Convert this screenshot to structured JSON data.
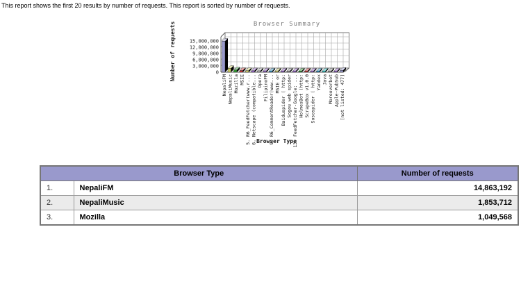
{
  "page": {
    "intro_text": "This report shows the first 20 results by number of requests. This report is sorted by number of requests."
  },
  "chart_data": {
    "type": "bar",
    "style": "3d-bars",
    "title": "Browser Summary",
    "xlabel": "Browser Type",
    "ylabel": "Number of requests",
    "ylim": [
      0,
      15000000
    ],
    "ytick_step": 3000000,
    "ytick_labels": [
      "0",
      "3,000,000",
      "6,000,000",
      "9,000,000",
      "12,000,000",
      "15,000,000"
    ],
    "grid": true,
    "categories": [
      "NepaliFM",
      "NepaliMusic",
      "Mozilla",
      "MSIE",
      "5. R6_FeedFetcher(www.r...",
      "6. Netscape (compatible...",
      "Opera",
      "FilipinoFM",
      "9. R6_CommentReader(www...",
      "MSIE or",
      "Baiduspider ( http:",
      "Sogou web spider",
      "13. FeedFetcher-Google: ...",
      "HolmesBot (http:",
      "ScrapeBox v1.0.0",
      "Sosospider ( http:",
      "Yandex",
      "Java",
      "Moreoverbot",
      "Apple-PubSub",
      "[not listed: 477]"
    ],
    "values": [
      14863192,
      1853712,
      1049568,
      800000,
      750000,
      700000,
      650000,
      620000,
      600000,
      580000,
      560000,
      540000,
      520000,
      500000,
      480000,
      460000,
      440000,
      420000,
      400000,
      380000,
      900000
    ],
    "bar_colors": [
      "#9999cc",
      "#cccc66",
      "#339933",
      "#cc3333",
      "#cccc66",
      "#9966cc",
      "#bbbbbb",
      "#9966cc",
      "#3399cc",
      "#cccc66",
      "#9966cc",
      "#999999",
      "#9966cc",
      "#339933",
      "#cc3333",
      "#9966cc",
      "#3399cc",
      "#33cccc",
      "#999999",
      "#9966cc",
      "#9999cc"
    ]
  },
  "table": {
    "header": {
      "browser_type": "Browser Type",
      "number_of_requests": "Number of requests"
    },
    "rows": [
      [
        "1.",
        "NepaliFM",
        "14,863,192"
      ],
      [
        "2.",
        "NepaliMusic",
        "1,853,712"
      ],
      [
        "3.",
        "Mozilla",
        "1,049,568"
      ]
    ]
  },
  "colors": {
    "table_header_bg": "#9999cc",
    "chart_title": "#7d7d7d",
    "grid_line": "#a6a6a6",
    "axis_line": "#555555",
    "bar_side": "#000000"
  }
}
